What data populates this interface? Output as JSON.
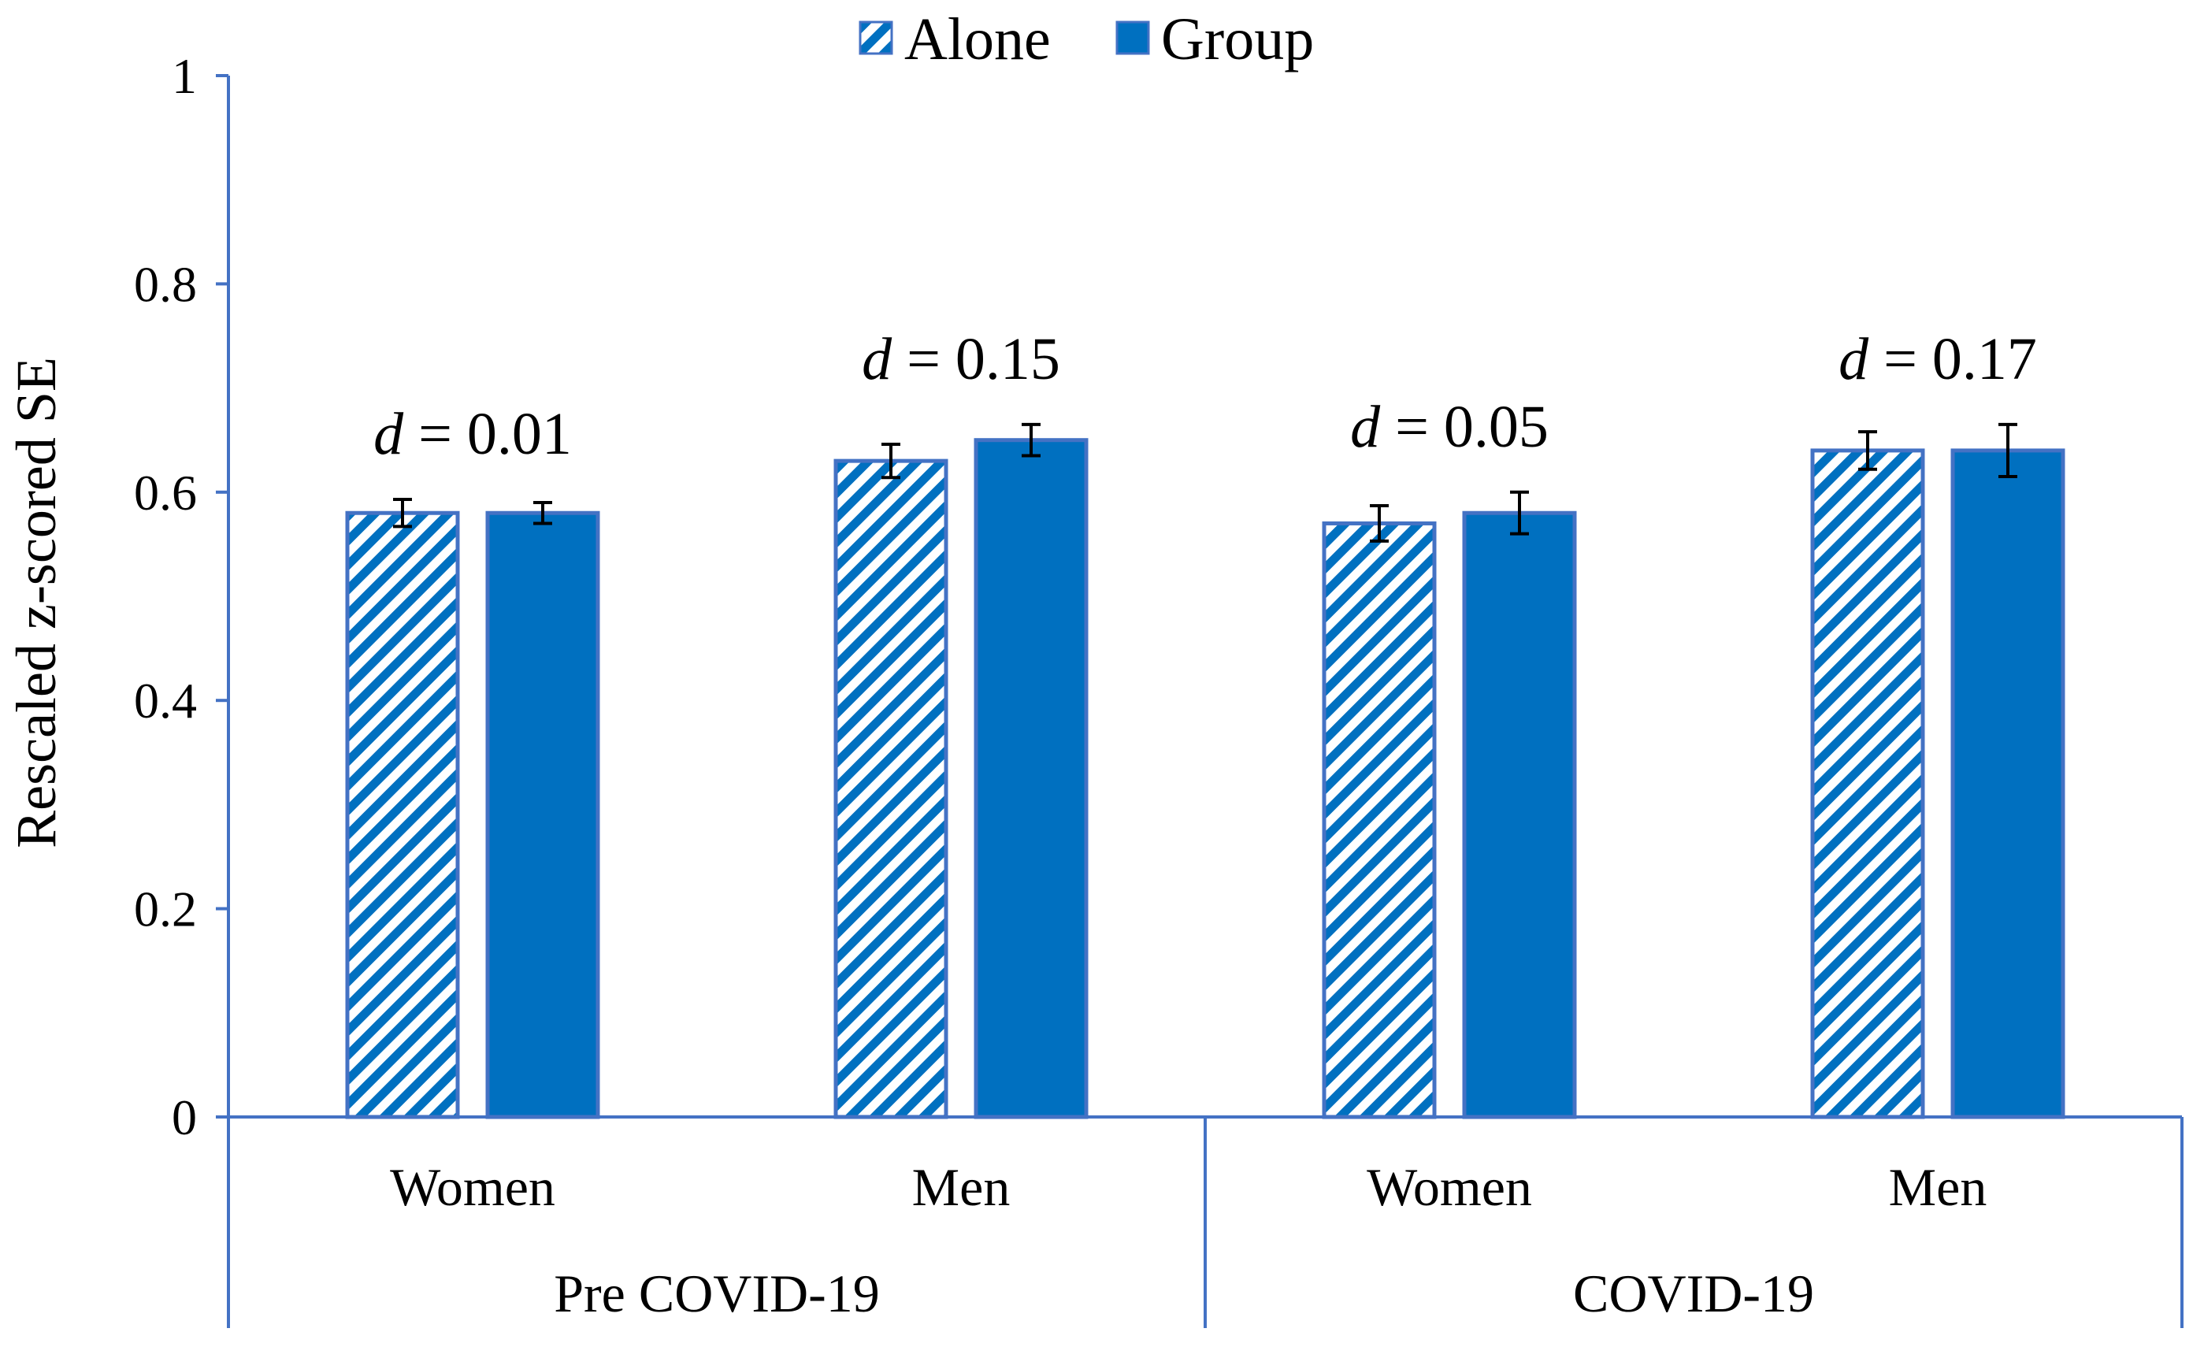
{
  "chart_data": {
    "type": "bar",
    "title": "",
    "ylabel": "Rescaled z-scored SE",
    "xlabel": "",
    "ylim": [
      0,
      1
    ],
    "yticks": [
      0,
      0.2,
      0.4,
      0.6,
      0.8,
      1
    ],
    "ytick_labels": [
      "0",
      "0.2",
      "0.4",
      "0.6",
      "0.8",
      "1"
    ],
    "legend_position": "top-center",
    "groups": [
      {
        "label": "Pre COVID-19",
        "categories": [
          "Women",
          "Men"
        ]
      },
      {
        "label": "COVID-19",
        "categories": [
          "Women",
          "Men"
        ]
      }
    ],
    "categories": [
      "Women",
      "Men",
      "Women",
      "Men"
    ],
    "series": [
      {
        "name": "Alone",
        "pattern": "hatched",
        "values": [
          0.58,
          0.63,
          0.57,
          0.64
        ],
        "errors": [
          0.013,
          0.016,
          0.017,
          0.018
        ]
      },
      {
        "name": "Group",
        "pattern": "solid",
        "values": [
          0.58,
          0.65,
          0.58,
          0.64
        ],
        "errors": [
          0.01,
          0.015,
          0.02,
          0.025
        ]
      }
    ],
    "annotations": [
      {
        "symbol": "d",
        "text": "= 0.01"
      },
      {
        "symbol": "d",
        "text": "= 0.15"
      },
      {
        "symbol": "d",
        "text": "= 0.05"
      },
      {
        "symbol": "d",
        "text": "= 0.17"
      }
    ],
    "colors": {
      "bar": "#0070C0",
      "axis": "#4472C4",
      "error": "#000000"
    }
  }
}
